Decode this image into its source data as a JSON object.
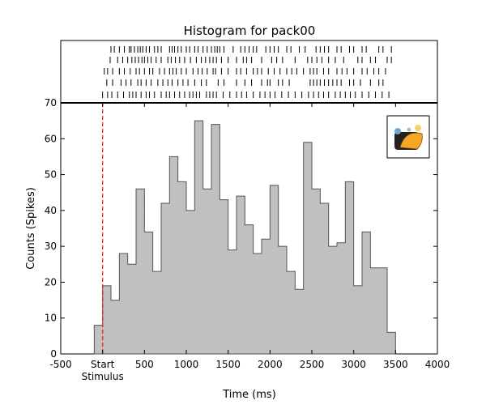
{
  "chart_data": {
    "type": "bar",
    "title": "Histogram for pack00",
    "xlabel": "Time (ms)",
    "ylabel": "Counts (Spikes)",
    "xlim": [
      -500,
      4000
    ],
    "ylim": [
      0,
      70
    ],
    "xticks": [
      -500,
      0,
      500,
      1000,
      1500,
      2000,
      2500,
      3000,
      3500,
      4000
    ],
    "xtick_labels": [
      "-500",
      "Start",
      "500",
      "1000",
      "1500",
      "2000",
      "2500",
      "3000",
      "3500",
      "4000"
    ],
    "stimulus_label": "Stimulus",
    "yticks": [
      0,
      10,
      20,
      30,
      40,
      50,
      60,
      70
    ],
    "stimulus_time": 0,
    "bin_width": 100,
    "bin_starts": [
      -100,
      0,
      100,
      200,
      300,
      400,
      500,
      600,
      700,
      800,
      900,
      1000,
      1100,
      1200,
      1300,
      1400,
      1500,
      1600,
      1700,
      1800,
      1900,
      2000,
      2100,
      2200,
      2300,
      2400,
      2500,
      2600,
      2700,
      2800,
      2900,
      3000,
      3100,
      3200,
      3300,
      3400
    ],
    "values": [
      8,
      19,
      15,
      28,
      25,
      46,
      34,
      23,
      42,
      55,
      48,
      40,
      65,
      46,
      64,
      43,
      29,
      44,
      36,
      28,
      32,
      47,
      30,
      23,
      18,
      59,
      46,
      42,
      30,
      31,
      48,
      19,
      34,
      24,
      24,
      6
    ],
    "bar_color": "#c0c0c0",
    "edge_color": "#555555",
    "stimulus_line_color": "#e0202a",
    "raster": {
      "trials": [
        [
          100,
          140,
          200,
          260,
          320,
          340,
          380,
          420,
          450,
          480,
          520,
          560,
          620,
          660,
          700,
          800,
          830,
          860,
          900,
          940,
          1000,
          1040,
          1100,
          1140,
          1200,
          1250,
          1300,
          1340,
          1370,
          1400,
          1450,
          1560,
          1650,
          1700,
          1750,
          1800,
          1840,
          1950,
          2000,
          2050,
          2100,
          2200,
          2250,
          2350,
          2420,
          2550,
          2600,
          2650,
          2700,
          2800,
          2850,
          2950,
          3000,
          3100,
          3150,
          3300,
          3350,
          3450
        ],
        [
          90,
          180,
          240,
          300,
          350,
          390,
          430,
          470,
          500,
          540,
          580,
          640,
          700,
          780,
          820,
          870,
          920,
          980,
          1050,
          1120,
          1180,
          1230,
          1280,
          1320,
          1360,
          1420,
          1500,
          1600,
          1680,
          1720,
          1780,
          1900,
          2020,
          2080,
          2150,
          2300,
          2450,
          2500,
          2560,
          2620,
          2700,
          2780,
          2880,
          3050,
          3100,
          3200,
          3260,
          3400,
          3450
        ],
        [
          20,
          60,
          120,
          200,
          260,
          330,
          400,
          440,
          500,
          560,
          600,
          680,
          740,
          800,
          840,
          880,
          940,
          1000,
          1080,
          1140,
          1190,
          1250,
          1320,
          1350,
          1420,
          1500,
          1600,
          1650,
          1720,
          1800,
          1850,
          1900,
          1980,
          2050,
          2120,
          2200,
          2260,
          2320,
          2400,
          2480,
          2520,
          2560,
          2640,
          2700,
          2800,
          2860,
          2920,
          3000,
          3100,
          3160,
          3240,
          3300,
          3380
        ],
        [
          50,
          120,
          220,
          280,
          340,
          420,
          460,
          520,
          580,
          660,
          720,
          780,
          830,
          900,
          960,
          1020,
          1100,
          1180,
          1240,
          1380,
          1450,
          1600,
          1700,
          1780,
          1900,
          1970,
          2000,
          2100,
          2150,
          2230,
          2480,
          2520,
          2560,
          2600,
          2650,
          2700,
          2750,
          2800,
          2850,
          2950,
          3000,
          3080,
          3200,
          3300,
          3350
        ],
        [
          0,
          60,
          110,
          180,
          250,
          320,
          360,
          400,
          460,
          520,
          560,
          620,
          700,
          760,
          800,
          860,
          920,
          980,
          1040,
          1080,
          1120,
          1160,
          1240,
          1280,
          1320,
          1360,
          1440,
          1520,
          1600,
          1660,
          1720,
          1800,
          1880,
          1940,
          2000,
          2060,
          2140,
          2220,
          2300,
          2380,
          2460,
          2520,
          2580,
          2640,
          2700,
          2780,
          2840,
          2900,
          2960,
          3020,
          3100,
          3180,
          3260,
          3340,
          3420
        ]
      ]
    }
  }
}
